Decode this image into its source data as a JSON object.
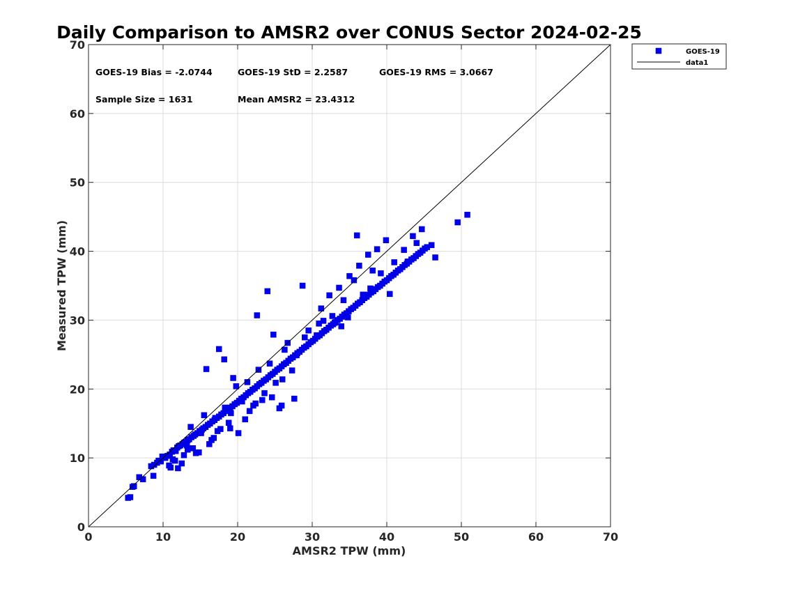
{
  "chart_data": {
    "type": "scatter",
    "title": "Daily Comparison to AMSR2 over CONUS Sector 2024-02-25",
    "xlabel": "AMSR2 TPW (mm)",
    "ylabel": "Measured TPW (mm)",
    "xlim": [
      0,
      70
    ],
    "ylim": [
      0,
      70
    ],
    "xticks": [
      "0",
      "10",
      "20",
      "30",
      "40",
      "50",
      "60",
      "70"
    ],
    "yticks": [
      "0",
      "10",
      "20",
      "30",
      "40",
      "50",
      "60",
      "70"
    ],
    "grid": true,
    "legend_position": "outside-top-right",
    "stats": {
      "bias": "GOES-19 Bias = -2.0744",
      "std": "GOES-19 StD = 2.2587",
      "rms": "GOES-19 RMS = 3.0667",
      "sample_size": "Sample Size = 1631",
      "mean_amsr2": "Mean AMSR2 = 23.4312"
    },
    "series": [
      {
        "name": "GOES-19",
        "marker": "square",
        "color": "#0000ee",
        "x": [
          5.3,
          5.6,
          5.9,
          6.1,
          6.8,
          7.3,
          8.4,
          8.7,
          8.8,
          9.2,
          9.4,
          9.7,
          10.1,
          10.3,
          10.6,
          10.9,
          11.2,
          11.4,
          11.7,
          11.9,
          12.1,
          12.3,
          12.6,
          12.8,
          13.0,
          13.3,
          13.5,
          13.8,
          14.1,
          14.3,
          14.6,
          14.9,
          15.2,
          15.4,
          15.7,
          16.0,
          16.3,
          16.6,
          16.9,
          17.2,
          17.5,
          17.8,
          18.1,
          18.4,
          18.7,
          19.0,
          19.3,
          19.6,
          19.9,
          20.2,
          20.5,
          20.8,
          21.1,
          21.4,
          21.7,
          22.0,
          22.3,
          22.6,
          22.9,
          23.2,
          23.5,
          23.8,
          24.1,
          24.4,
          24.7,
          25.0,
          25.3,
          25.6,
          25.9,
          26.2,
          26.5,
          26.8,
          27.1,
          27.4,
          27.7,
          28.0,
          28.3,
          28.6,
          28.9,
          29.2,
          29.5,
          29.8,
          30.1,
          30.4,
          30.7,
          31.0,
          31.3,
          31.6,
          31.9,
          32.2,
          32.5,
          32.8,
          33.1,
          33.4,
          33.7,
          34.0,
          34.3,
          34.6,
          34.9,
          35.2,
          35.5,
          35.8,
          36.1,
          36.4,
          36.7,
          37.0,
          37.3,
          37.6,
          37.9,
          38.2,
          38.5,
          38.8,
          39.1,
          39.4,
          39.7,
          40.0,
          40.3,
          40.6,
          40.9,
          41.2,
          41.5,
          41.8,
          42.1,
          42.4,
          42.7,
          43.0,
          43.3,
          43.6,
          43.9,
          44.2,
          44.5,
          44.8,
          45.1,
          45.4,
          46.0,
          46.5,
          49.5,
          50.8,
          11.0,
          12.5,
          13.2,
          14.4,
          15.1,
          16.2,
          17.0,
          17.7,
          18.3,
          19.1,
          19.8,
          20.6,
          21.3,
          22.1,
          22.8,
          23.6,
          24.3,
          25.1,
          26.0,
          27.3,
          27.6,
          15.8,
          18.2,
          17.5,
          22.6,
          24.0,
          24.8,
          29.0,
          31.2,
          32.3,
          33.6,
          35.0,
          36.3,
          37.5,
          38.7,
          39.9,
          41.0,
          42.3,
          43.5,
          44.7,
          30.6,
          33.0,
          28.7,
          26.7,
          40.4,
          36.0,
          38.1,
          34.8,
          12.0,
          14.8,
          16.5,
          13.7,
          10.8,
          11.6,
          9.9,
          20.1,
          21.6,
          23.3,
          25.6,
          19.4,
          15.5,
          30.9,
          32.7,
          34.2,
          37.8,
          39.2,
          42.8,
          44.0,
          36.8,
          35.6,
          33.9,
          31.5,
          29.5,
          27.9,
          26.3,
          19.0,
          14.0,
          12.8,
          17.3,
          21.0,
          22.4,
          18.8,
          16.8,
          13.3,
          11.3,
          24.6,
          25.9
        ],
        "y": [
          4.2,
          4.3,
          5.8,
          5.9,
          7.2,
          6.9,
          8.8,
          7.4,
          9.0,
          9.3,
          9.6,
          9.5,
          10.1,
          10.0,
          10.3,
          10.5,
          10.9,
          11.1,
          11.0,
          11.5,
          11.7,
          11.8,
          12.0,
          12.2,
          12.3,
          12.6,
          12.7,
          13.0,
          13.2,
          13.4,
          13.6,
          13.9,
          14.1,
          14.3,
          14.5,
          14.8,
          15.0,
          15.3,
          15.5,
          15.8,
          16.0,
          16.3,
          16.5,
          16.8,
          17.0,
          17.3,
          17.5,
          17.8,
          18.0,
          18.3,
          18.6,
          18.8,
          19.1,
          19.4,
          19.6,
          19.9,
          20.1,
          20.4,
          20.7,
          20.9,
          21.2,
          21.4,
          21.7,
          22.0,
          22.2,
          22.5,
          22.8,
          23.0,
          23.3,
          23.6,
          23.8,
          24.1,
          24.4,
          24.6,
          24.9,
          25.2,
          25.4,
          25.7,
          26.0,
          26.2,
          26.5,
          26.8,
          27.0,
          27.3,
          27.6,
          27.8,
          28.1,
          28.4,
          28.6,
          28.9,
          29.2,
          29.4,
          29.7,
          30.0,
          30.2,
          30.5,
          30.8,
          31.0,
          31.3,
          31.6,
          31.8,
          32.1,
          32.4,
          32.6,
          32.9,
          33.2,
          33.4,
          33.7,
          34.0,
          34.2,
          34.5,
          34.8,
          35.0,
          35.3,
          35.6,
          35.8,
          36.1,
          36.4,
          36.6,
          36.9,
          37.2,
          37.4,
          37.7,
          38.0,
          38.2,
          38.5,
          38.8,
          39.0,
          39.3,
          39.6,
          39.8,
          40.1,
          40.4,
          40.6,
          40.9,
          39.1,
          44.2,
          45.3,
          8.6,
          9.2,
          11.8,
          10.7,
          13.6,
          12.0,
          15.8,
          14.2,
          17.3,
          16.5,
          20.4,
          18.2,
          21.0,
          17.6,
          22.8,
          19.4,
          23.7,
          20.9,
          21.4,
          22.7,
          18.6,
          22.9,
          24.3,
          25.8,
          30.7,
          34.2,
          27.9,
          27.5,
          31.7,
          33.6,
          34.7,
          36.4,
          37.9,
          39.5,
          40.3,
          41.6,
          38.4,
          40.2,
          42.2,
          43.2,
          27.8,
          29.6,
          35.0,
          26.7,
          33.8,
          42.3,
          37.2,
          30.4,
          8.5,
          10.8,
          12.6,
          14.5,
          8.9,
          9.6,
          10.2,
          13.6,
          16.8,
          18.4,
          17.2,
          21.6,
          16.2,
          29.5,
          30.6,
          32.9,
          34.6,
          36.8,
          38.5,
          41.2,
          33.7,
          35.8,
          29.1,
          29.9,
          28.5,
          24.9,
          25.7,
          14.3,
          11.4,
          10.4,
          13.9,
          15.6,
          17.9,
          15.1,
          12.9,
          11.2,
          9.8,
          18.8,
          17.6
        ]
      },
      {
        "name": "data1",
        "type": "line",
        "color": "#000000",
        "x": [
          0,
          70
        ],
        "y": [
          0,
          70
        ]
      }
    ]
  }
}
